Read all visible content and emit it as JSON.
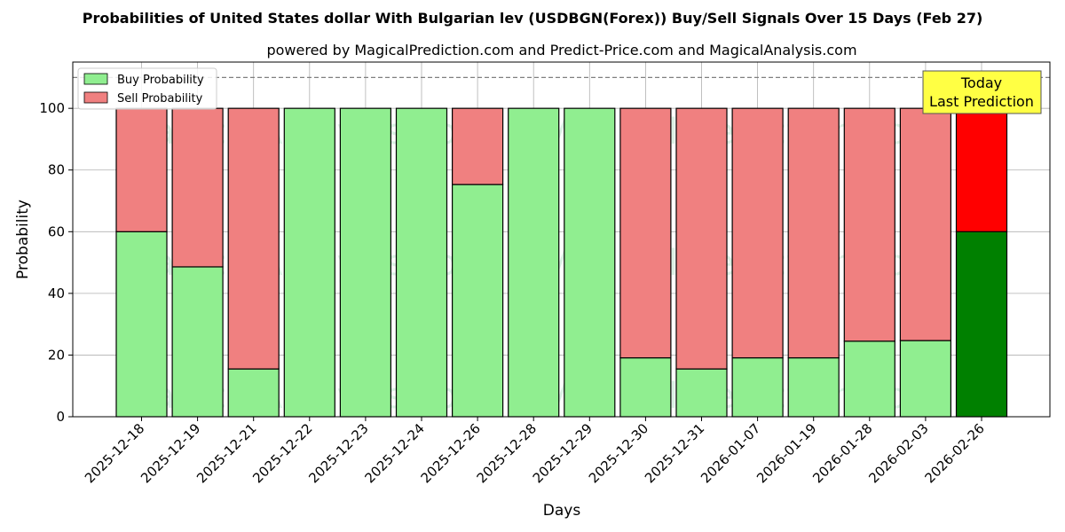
{
  "chart_data": {
    "type": "bar",
    "stacked": true,
    "title": "Probabilities of United States dollar With Bulgarian lev (USDBGN(Forex)) Buy/Sell Signals Over 15 Days (Feb 27)",
    "subtitle": "powered by MagicalPrediction.com and Predict-Price.com and MagicalAnalysis.com",
    "xlabel": "Days",
    "ylabel": "Probability",
    "ylim": [
      0,
      115
    ],
    "yticks": [
      0,
      20,
      40,
      60,
      80,
      100
    ],
    "grid": true,
    "reference_line": 110,
    "legend_position": "top-left",
    "categories": [
      "2025-12-18",
      "2025-12-19",
      "2025-12-21",
      "2025-12-22",
      "2025-12-23",
      "2025-12-24",
      "2025-12-26",
      "2025-12-28",
      "2025-12-29",
      "2025-12-30",
      "2025-12-31",
      "2026-01-07",
      "2026-01-19",
      "2026-01-28",
      "2026-02-03",
      "2026-02-26"
    ],
    "series": [
      {
        "name": "Buy Probability",
        "color": "#90ee90",
        "highlight_color": "#008000",
        "values": [
          60,
          48.6,
          15.5,
          100,
          100,
          100,
          75.3,
          100,
          100,
          19.1,
          15.5,
          19.1,
          19.1,
          24.5,
          24.7,
          60
        ]
      },
      {
        "name": "Sell Probability",
        "color": "#f08080",
        "highlight_color": "#ff0000",
        "values": [
          40,
          51.4,
          84.5,
          0,
          0,
          0,
          24.7,
          0,
          0,
          80.9,
          84.5,
          80.9,
          80.9,
          75.5,
          75.3,
          40
        ]
      }
    ],
    "highlight_index": 15,
    "annotation": {
      "line1": "Today",
      "line2": "Last Prediction",
      "color": "#ffff44"
    },
    "watermarks": [
      "MagicalAnalysis.com",
      "MagicalPrediction.com"
    ]
  }
}
